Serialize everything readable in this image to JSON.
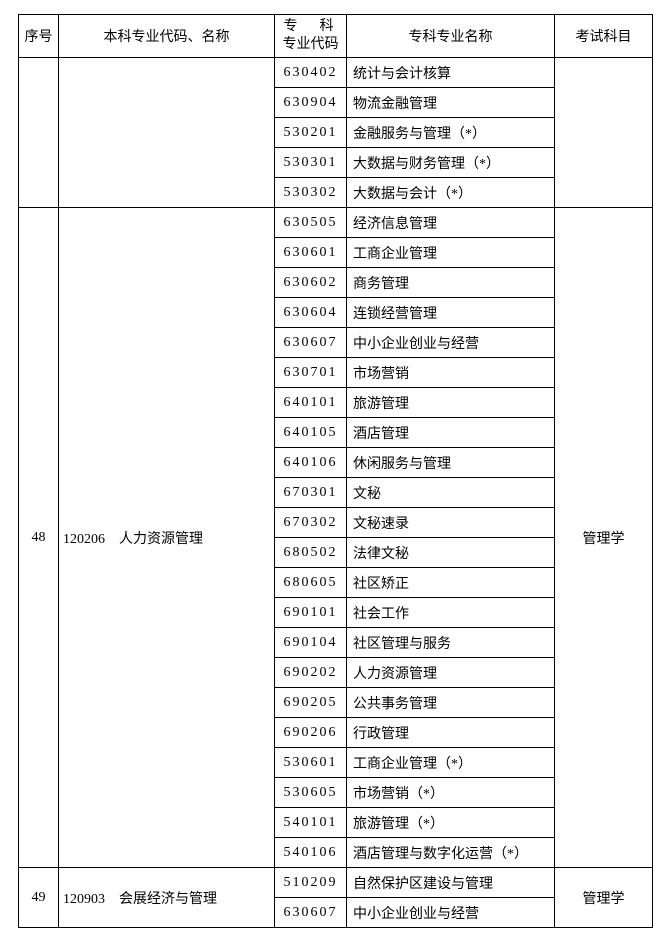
{
  "headers": {
    "seq": "序号",
    "major": "本科专业代码、名称",
    "code_line1": "专　科",
    "code_line2": "专业代码",
    "spec_name": "专科专业名称",
    "exam": "考试科目"
  },
  "group0": {
    "rows": [
      {
        "code": "630402",
        "name": "统计与会计核算"
      },
      {
        "code": "630904",
        "name": "物流金融管理"
      },
      {
        "code": "530201",
        "name": "金融服务与管理（*）"
      },
      {
        "code": "530301",
        "name": "大数据与财务管理（*）"
      },
      {
        "code": "530302",
        "name": "大数据与会计（*）"
      }
    ]
  },
  "group48": {
    "seq": "48",
    "major": "120206　人力资源管理",
    "exam": "管理学",
    "rows": [
      {
        "code": "630505",
        "name": "经济信息管理"
      },
      {
        "code": "630601",
        "name": "工商企业管理"
      },
      {
        "code": "630602",
        "name": "商务管理"
      },
      {
        "code": "630604",
        "name": "连锁经营管理"
      },
      {
        "code": "630607",
        "name": "中小企业创业与经营"
      },
      {
        "code": "630701",
        "name": "市场营销"
      },
      {
        "code": "640101",
        "name": "旅游管理"
      },
      {
        "code": "640105",
        "name": "酒店管理"
      },
      {
        "code": "640106",
        "name": "休闲服务与管理"
      },
      {
        "code": "670301",
        "name": "文秘"
      },
      {
        "code": "670302",
        "name": "文秘速录"
      },
      {
        "code": "680502",
        "name": "法律文秘"
      },
      {
        "code": "680605",
        "name": "社区矫正"
      },
      {
        "code": "690101",
        "name": "社会工作"
      },
      {
        "code": "690104",
        "name": "社区管理与服务"
      },
      {
        "code": "690202",
        "name": "人力资源管理"
      },
      {
        "code": "690205",
        "name": "公共事务管理"
      },
      {
        "code": "690206",
        "name": "行政管理"
      },
      {
        "code": "530601",
        "name": "工商企业管理（*）"
      },
      {
        "code": "530605",
        "name": "市场营销（*）"
      },
      {
        "code": "540101",
        "name": "旅游管理（*）"
      },
      {
        "code": "540106",
        "name": "酒店管理与数字化运营（*）"
      }
    ]
  },
  "group49": {
    "seq": "49",
    "major": "120903　会展经济与管理",
    "exam": "管理学",
    "rows": [
      {
        "code": "510209",
        "name": "自然保护区建设与管理"
      },
      {
        "code": "630607",
        "name": "中小企业创业与经营"
      }
    ]
  }
}
